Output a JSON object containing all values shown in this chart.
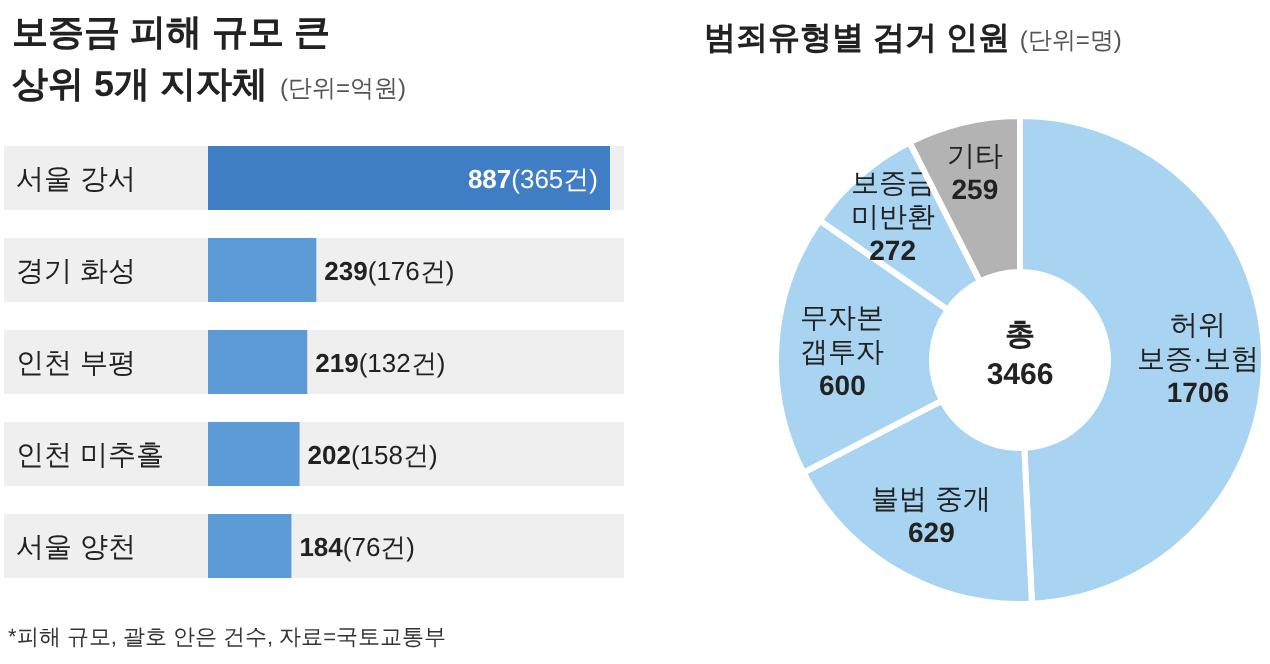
{
  "chart_data": [
    {
      "type": "bar",
      "orientation": "horizontal",
      "title": "보증금 피해 규모 큰\n상위 5개 지자체",
      "subtitle": "(단위=억원)",
      "categories": [
        "서울 강서",
        "경기 화성",
        "인천 부평",
        "인천 미추홀",
        "서울 양천"
      ],
      "values": [
        887,
        239,
        219,
        202,
        184
      ],
      "colors": [
        "#3f7dc4",
        "#5d9bd6",
        "#5d9bd6",
        "#5d9bd6",
        "#5d9bd6"
      ],
      "value_labels": [
        "887(365건)",
        "239(176건)",
        "219(132건)",
        "202(158건)",
        "184(76건)"
      ],
      "annotations": [
        "*피해 규모, 괄호 안은 건수, 자료=국토교통부"
      ]
    },
    {
      "type": "donut",
      "title": "범죄유형별 검거 인원",
      "subtitle": "(단위=명)",
      "categories": [
        "허위\n보증·보험",
        "불법 중개",
        "무자본\n갭투자",
        "보증금\n미반환",
        "기타"
      ],
      "values": [
        1706,
        629,
        600,
        272,
        259
      ],
      "colors": [
        "#a8d4f2",
        "#a8d4f2",
        "#a8d4f2",
        "#a8d4f2",
        "#b3b3b3"
      ],
      "data_labels": true,
      "annotations": [
        "총",
        "3466"
      ]
    }
  ]
}
